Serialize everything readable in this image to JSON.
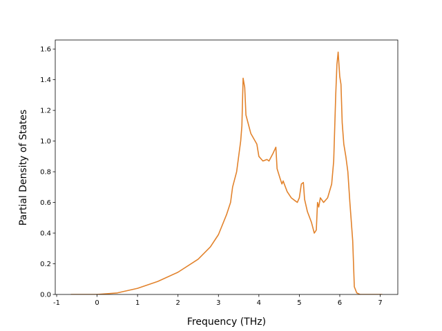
{
  "chart_data": {
    "type": "line",
    "xlabel": "Frequency (THz)",
    "ylabel": "Partial Density of States",
    "x": [
      -0.65,
      0,
      0.5,
      1,
      1.5,
      2,
      2.5,
      2.8,
      3,
      3.2,
      3.3,
      3.35,
      3.45,
      3.55,
      3.58,
      3.61,
      3.65,
      3.68,
      3.8,
      3.95,
      4.0,
      4.1,
      4.2,
      4.25,
      4.35,
      4.42,
      4.45,
      4.52,
      4.57,
      4.6,
      4.7,
      4.8,
      4.9,
      4.95,
      5.0,
      5.05,
      5.1,
      5.13,
      5.2,
      5.3,
      5.37,
      5.42,
      5.45,
      5.48,
      5.52,
      5.6,
      5.7,
      5.8,
      5.85,
      5.9,
      5.93,
      5.96,
      6.0,
      6.03,
      6.06,
      6.1,
      6.15,
      6.2,
      6.25,
      6.32,
      6.36,
      6.42,
      6.5,
      7.05
    ],
    "series": [
      {
        "color": "#e2822b",
        "values": [
          0,
          0,
          0.01,
          0.04,
          0.085,
          0.145,
          0.23,
          0.31,
          0.39,
          0.52,
          0.6,
          0.7,
          0.8,
          1.0,
          1.1,
          1.41,
          1.35,
          1.17,
          1.05,
          0.98,
          0.9,
          0.87,
          0.88,
          0.87,
          0.92,
          0.96,
          0.82,
          0.76,
          0.72,
          0.74,
          0.67,
          0.63,
          0.61,
          0.6,
          0.63,
          0.72,
          0.73,
          0.62,
          0.54,
          0.47,
          0.4,
          0.42,
          0.6,
          0.57,
          0.63,
          0.6,
          0.63,
          0.72,
          0.87,
          1.3,
          1.5,
          1.58,
          1.42,
          1.37,
          1.12,
          0.98,
          0.9,
          0.8,
          0.6,
          0.35,
          0.05,
          0.01,
          0,
          0
        ]
      }
    ],
    "xlim": [
      -1.035,
      7.435
    ],
    "ylim": [
      0,
      1.659
    ],
    "xticks": [
      -1,
      0,
      1,
      2,
      3,
      4,
      5,
      6,
      7
    ],
    "yticks": [
      {
        "value": 0,
        "label": "0.0"
      },
      0.2,
      0.4,
      0.6,
      0.8,
      {
        "value": 1,
        "label": "1.0"
      },
      1.2,
      1.4,
      1.6
    ]
  }
}
